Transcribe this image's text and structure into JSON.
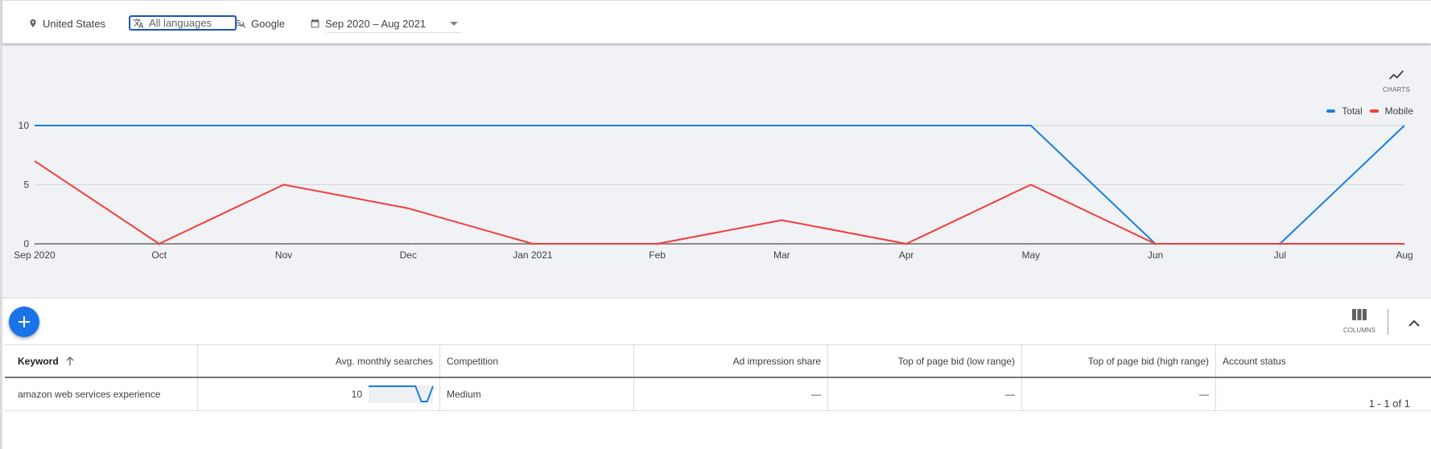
{
  "filters": {
    "location": "United States",
    "language": "All languages",
    "network": "Google",
    "date_range": "Sep 2020 – Aug 2021"
  },
  "chart_toolbar": {
    "charts_label": "CHARTS"
  },
  "colors": {
    "total": "#1a7fe0",
    "mobile": "#f23c3c",
    "fab": "#1a73e8",
    "language_focus": "#1a56b8"
  },
  "chart_data": {
    "type": "line",
    "title": "",
    "xlabel": "",
    "ylabel": "",
    "categories": [
      "Sep 2020",
      "Oct",
      "Nov",
      "Dec",
      "Jan 2021",
      "Feb",
      "Mar",
      "Apr",
      "May",
      "Jun",
      "Jul",
      "Aug"
    ],
    "series": [
      {
        "name": "Total",
        "color": "#1a7fe0",
        "values": [
          10,
          10,
          10,
          10,
          10,
          10,
          10,
          10,
          10,
          0,
          0,
          10
        ]
      },
      {
        "name": "Mobile",
        "color": "#f23c3c",
        "values": [
          7,
          0,
          5,
          3,
          0,
          0,
          2,
          0,
          5,
          0,
          0,
          0
        ]
      }
    ],
    "yticks": [
      "0",
      "5",
      "10"
    ],
    "ylim": [
      0,
      10
    ],
    "grid": true,
    "legend_position": "top-right"
  },
  "table_toolbar": {
    "add_label": "+",
    "columns_label": "COLUMNS"
  },
  "table": {
    "headers": [
      "Keyword",
      "Avg. monthly searches",
      "Competition",
      "Ad impression share",
      "Top of page bid (low range)",
      "Top of page bid (high range)",
      "Account status"
    ],
    "rows": [
      {
        "keyword": "amazon web services experience",
        "avg_monthly_searches": "10",
        "competition": "Medium",
        "ad_impression_share": "—",
        "bid_low": "—",
        "bid_high": "—",
        "account_status": ""
      }
    ]
  },
  "pagination": "1 - 1 of 1"
}
